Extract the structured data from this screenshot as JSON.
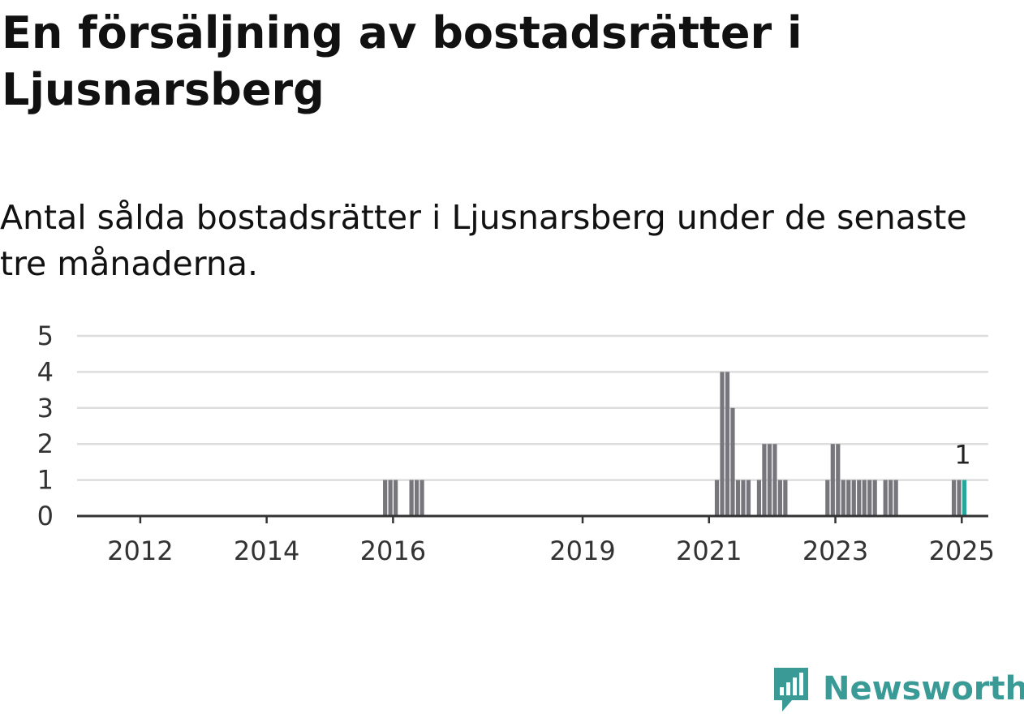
{
  "header": {
    "title": "En försäljning av bostadsrätter i Ljusnarsberg",
    "subtitle": "Antal sålda bostadsrätter i Ljusnarsberg under de senaste tre månaderna."
  },
  "brand": {
    "name": "Newsworthy",
    "color": "#3a9a96",
    "icon": "newsworthy-logo-icon"
  },
  "colors": {
    "bar": "#76767c",
    "highlight": "#2aa59a",
    "grid": "#dddddd",
    "axis": "#333333"
  },
  "chart_data": {
    "type": "bar",
    "title": "",
    "xlabel": "",
    "ylabel": "",
    "ylim": [
      0,
      5
    ],
    "y_ticks": [
      "0",
      "1",
      "2",
      "3",
      "4",
      "5"
    ],
    "x_ticks": [
      "2012",
      "2014",
      "2016",
      "2019",
      "2021",
      "2023",
      "2025"
    ],
    "grid": true,
    "x": [
      "2015-11",
      "2015-12",
      "2016-01",
      "2016-04",
      "2016-05",
      "2016-06",
      "2021-02",
      "2021-03",
      "2021-04",
      "2021-05",
      "2021-06",
      "2021-07",
      "2021-08",
      "2021-10",
      "2021-11",
      "2021-12",
      "2022-01",
      "2022-02",
      "2022-03",
      "2022-11",
      "2022-12",
      "2023-01",
      "2023-02",
      "2023-03",
      "2023-04",
      "2023-05",
      "2023-06",
      "2023-07",
      "2023-08",
      "2023-10",
      "2023-11",
      "2023-12",
      "2024-11",
      "2024-12",
      "2025-01"
    ],
    "values": [
      1,
      1,
      1,
      1,
      1,
      1,
      1,
      4,
      4,
      3,
      1,
      1,
      1,
      1,
      2,
      2,
      2,
      1,
      1,
      1,
      2,
      2,
      1,
      1,
      1,
      1,
      1,
      1,
      1,
      1,
      1,
      1,
      1,
      1,
      1
    ],
    "highlight_index": 34,
    "annotation": "1"
  }
}
